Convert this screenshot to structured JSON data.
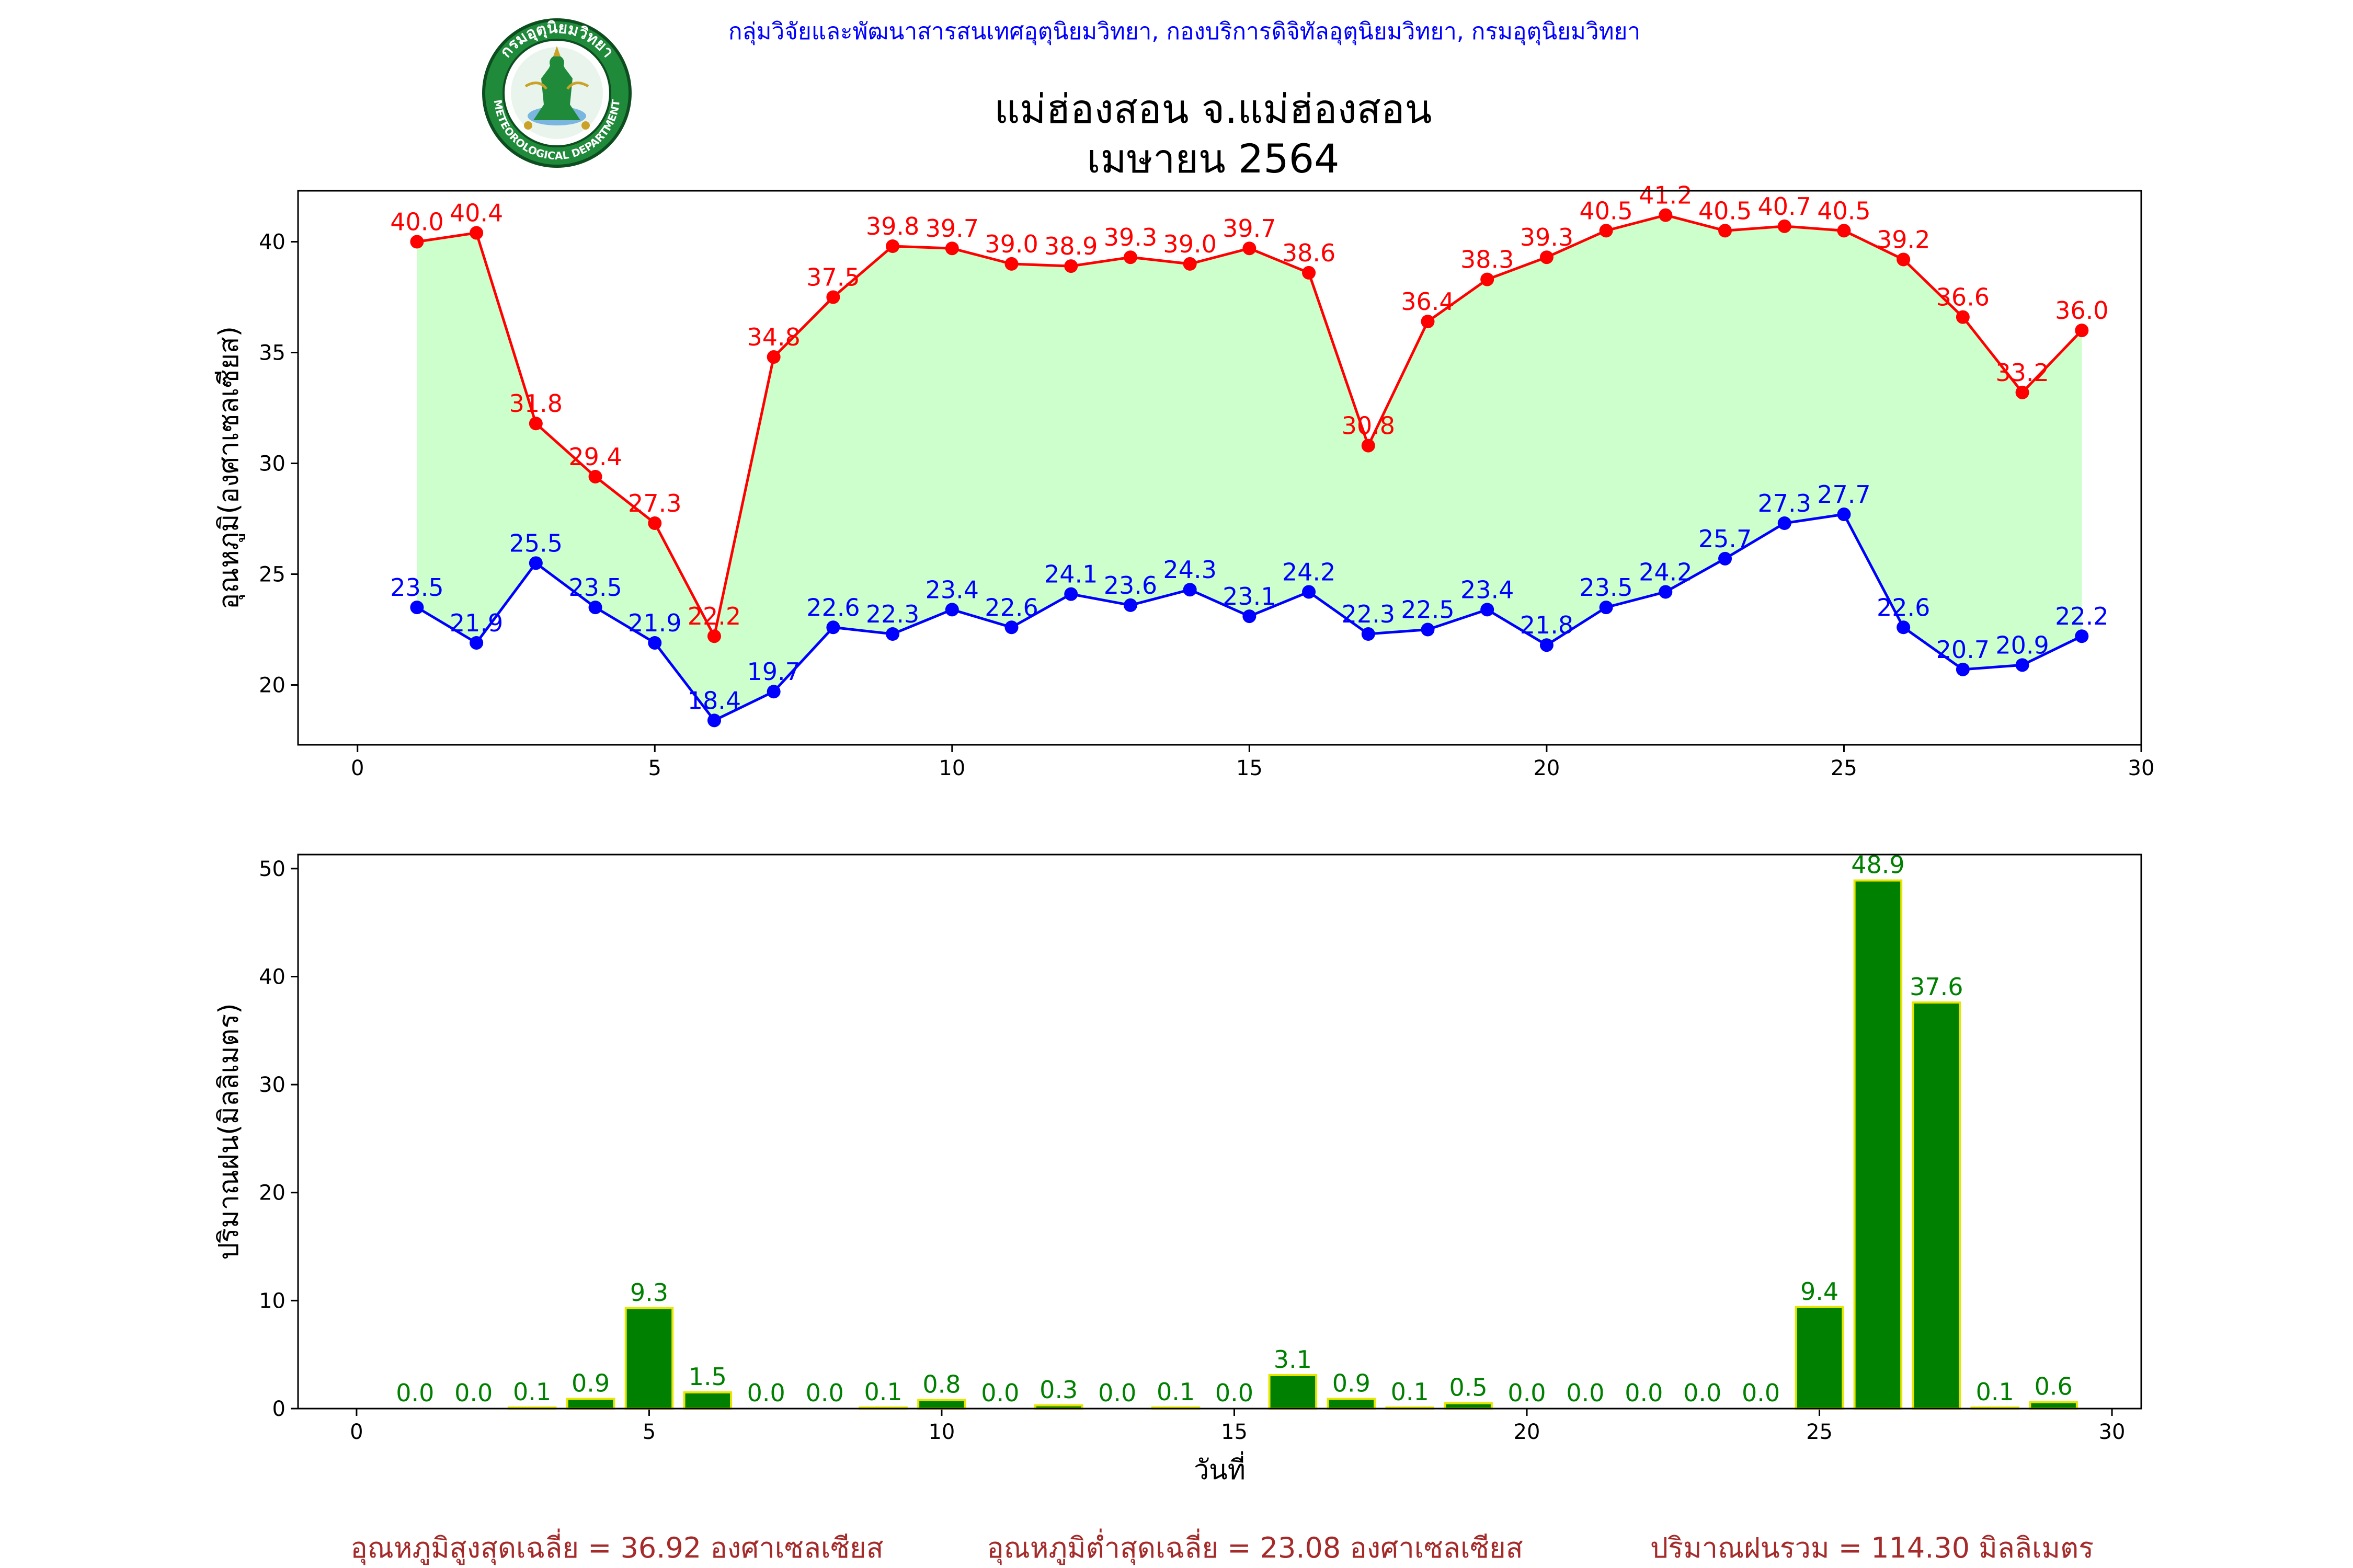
{
  "header": {
    "agency": "กลุ่มวิจัยและพัฒนาสารสนเทศอุตุนิยมวิทยา, กองบริการดิจิทัลอุตุนิยมวิทยา, กรมอุตุนิยมวิทยา",
    "title_line1": "แม่ฮ่องสอน จ.แม่ฮ่องสอน",
    "title_line2": "เมษายน 2564",
    "logo": {
      "top_text": "กรมอุตุนิยมวิทยา",
      "bottom_text": "METEOROLOGICAL DEPARTMENT"
    }
  },
  "colors": {
    "max_line": "#ff0000",
    "min_line": "#0000ff",
    "fill": "#ccffcc",
    "bar": "#008000",
    "bar_edge": "#e6e600",
    "bar_label": "#008000",
    "agency_text": "#0000ff",
    "summary_text": "#a52a2a"
  },
  "chart_data": [
    {
      "type": "line",
      "ylabel": "อุณหภูมิ(องศาเซลเซียส)",
      "xlabel": "",
      "xlim": [
        -1,
        30
      ],
      "ylim": [
        17.3,
        42.3
      ],
      "x_ticks": [
        0,
        5,
        10,
        15,
        20,
        25,
        30
      ],
      "y_ticks": [
        20,
        25,
        30,
        35,
        40
      ],
      "fill_between": true,
      "x": [
        1,
        2,
        3,
        4,
        5,
        6,
        7,
        8,
        9,
        10,
        11,
        12,
        13,
        14,
        15,
        16,
        17,
        18,
        19,
        20,
        21,
        22,
        23,
        24,
        25,
        26,
        27,
        28,
        29
      ],
      "series": [
        {
          "color": "#ff0000",
          "values": [
            40.0,
            40.4,
            31.8,
            29.4,
            27.3,
            22.2,
            34.8,
            37.5,
            39.8,
            39.7,
            39.0,
            38.9,
            39.3,
            39.0,
            39.7,
            38.6,
            30.8,
            36.4,
            38.3,
            39.3,
            40.5,
            41.2,
            40.5,
            40.7,
            40.5,
            39.2,
            36.6,
            33.2,
            36.0
          ],
          "labels": [
            "40.0",
            "40.4",
            "31.8",
            "29.4",
            "27.3",
            "22.2",
            "34.8",
            "37.5",
            "39.8",
            "39.7",
            "39.0",
            "38.9",
            "39.3",
            "39.0",
            "39.7",
            "38.6",
            "30.8",
            "36.4",
            "38.3",
            "39.3",
            "40.5",
            "41.2",
            "40.5",
            "40.7",
            "40.5",
            "39.2",
            "36.6",
            "33.2",
            "36.0"
          ]
        },
        {
          "color": "#0000ff",
          "values": [
            23.5,
            21.9,
            25.5,
            23.5,
            21.9,
            18.4,
            19.7,
            22.6,
            22.3,
            23.4,
            22.6,
            24.1,
            23.6,
            24.3,
            23.1,
            24.2,
            22.3,
            22.5,
            23.4,
            21.8,
            23.5,
            24.2,
            25.7,
            27.3,
            27.7,
            22.6,
            20.7,
            20.9,
            22.2
          ],
          "labels": [
            "23.5",
            "21.9",
            "25.5",
            "23.5",
            "21.9",
            "18.4",
            "19.7",
            "22.6",
            "22.3",
            "23.4",
            "22.6",
            "24.1",
            "23.6",
            "24.3",
            "23.1",
            "24.2",
            "22.3",
            "22.5",
            "23.4",
            "21.8",
            "23.5",
            "24.2",
            "25.7",
            "27.3",
            "27.7",
            "22.6",
            "20.7",
            "20.9",
            "22.2"
          ]
        }
      ]
    },
    {
      "type": "bar",
      "ylabel": "ปริมาณฝน(มิลลิเมตร)",
      "xlabel": "วันที่",
      "xlim": [
        -1,
        30.5
      ],
      "ylim": [
        0,
        51.3
      ],
      "x_ticks": [
        0,
        5,
        10,
        15,
        20,
        25,
        30
      ],
      "y_ticks": [
        0,
        10,
        20,
        30,
        40,
        50
      ],
      "categories": [
        1,
        2,
        3,
        4,
        5,
        6,
        7,
        8,
        9,
        10,
        11,
        12,
        13,
        14,
        15,
        16,
        17,
        18,
        19,
        20,
        21,
        22,
        23,
        24,
        25,
        26,
        27,
        28,
        29
      ],
      "values": [
        0.0,
        0.0,
        0.1,
        0.9,
        9.3,
        1.5,
        0.0,
        0.0,
        0.1,
        0.8,
        0.0,
        0.3,
        0.0,
        0.1,
        0.0,
        3.1,
        0.9,
        0.1,
        0.5,
        0.0,
        0.0,
        0.0,
        0.0,
        0.0,
        9.4,
        48.9,
        37.6,
        0.1,
        0.6
      ],
      "labels": [
        "0.0",
        "0.0",
        "0.1",
        "0.9",
        "9.3",
        "1.5",
        "0.0",
        "0.0",
        "0.1",
        "0.8",
        "0.0",
        "0.3",
        "0.0",
        "0.1",
        "0.0",
        "3.1",
        "0.9",
        "0.1",
        "0.5",
        "0.0",
        "0.0",
        "0.0",
        "0.0",
        "0.0",
        "9.4",
        "48.9",
        "37.6",
        "0.1",
        "0.6"
      ]
    }
  ],
  "summary": {
    "avg_max": "อุณหภูมิสูงสุดเฉลี่ย = 36.92 องศาเซลเซียส",
    "avg_min": "อุณหภูมิต่ำสุดเฉลี่ย = 23.08 องศาเซลเซียส",
    "total_rain": "ปริมาณฝนรวม = 114.30 มิลลิเมตร"
  }
}
